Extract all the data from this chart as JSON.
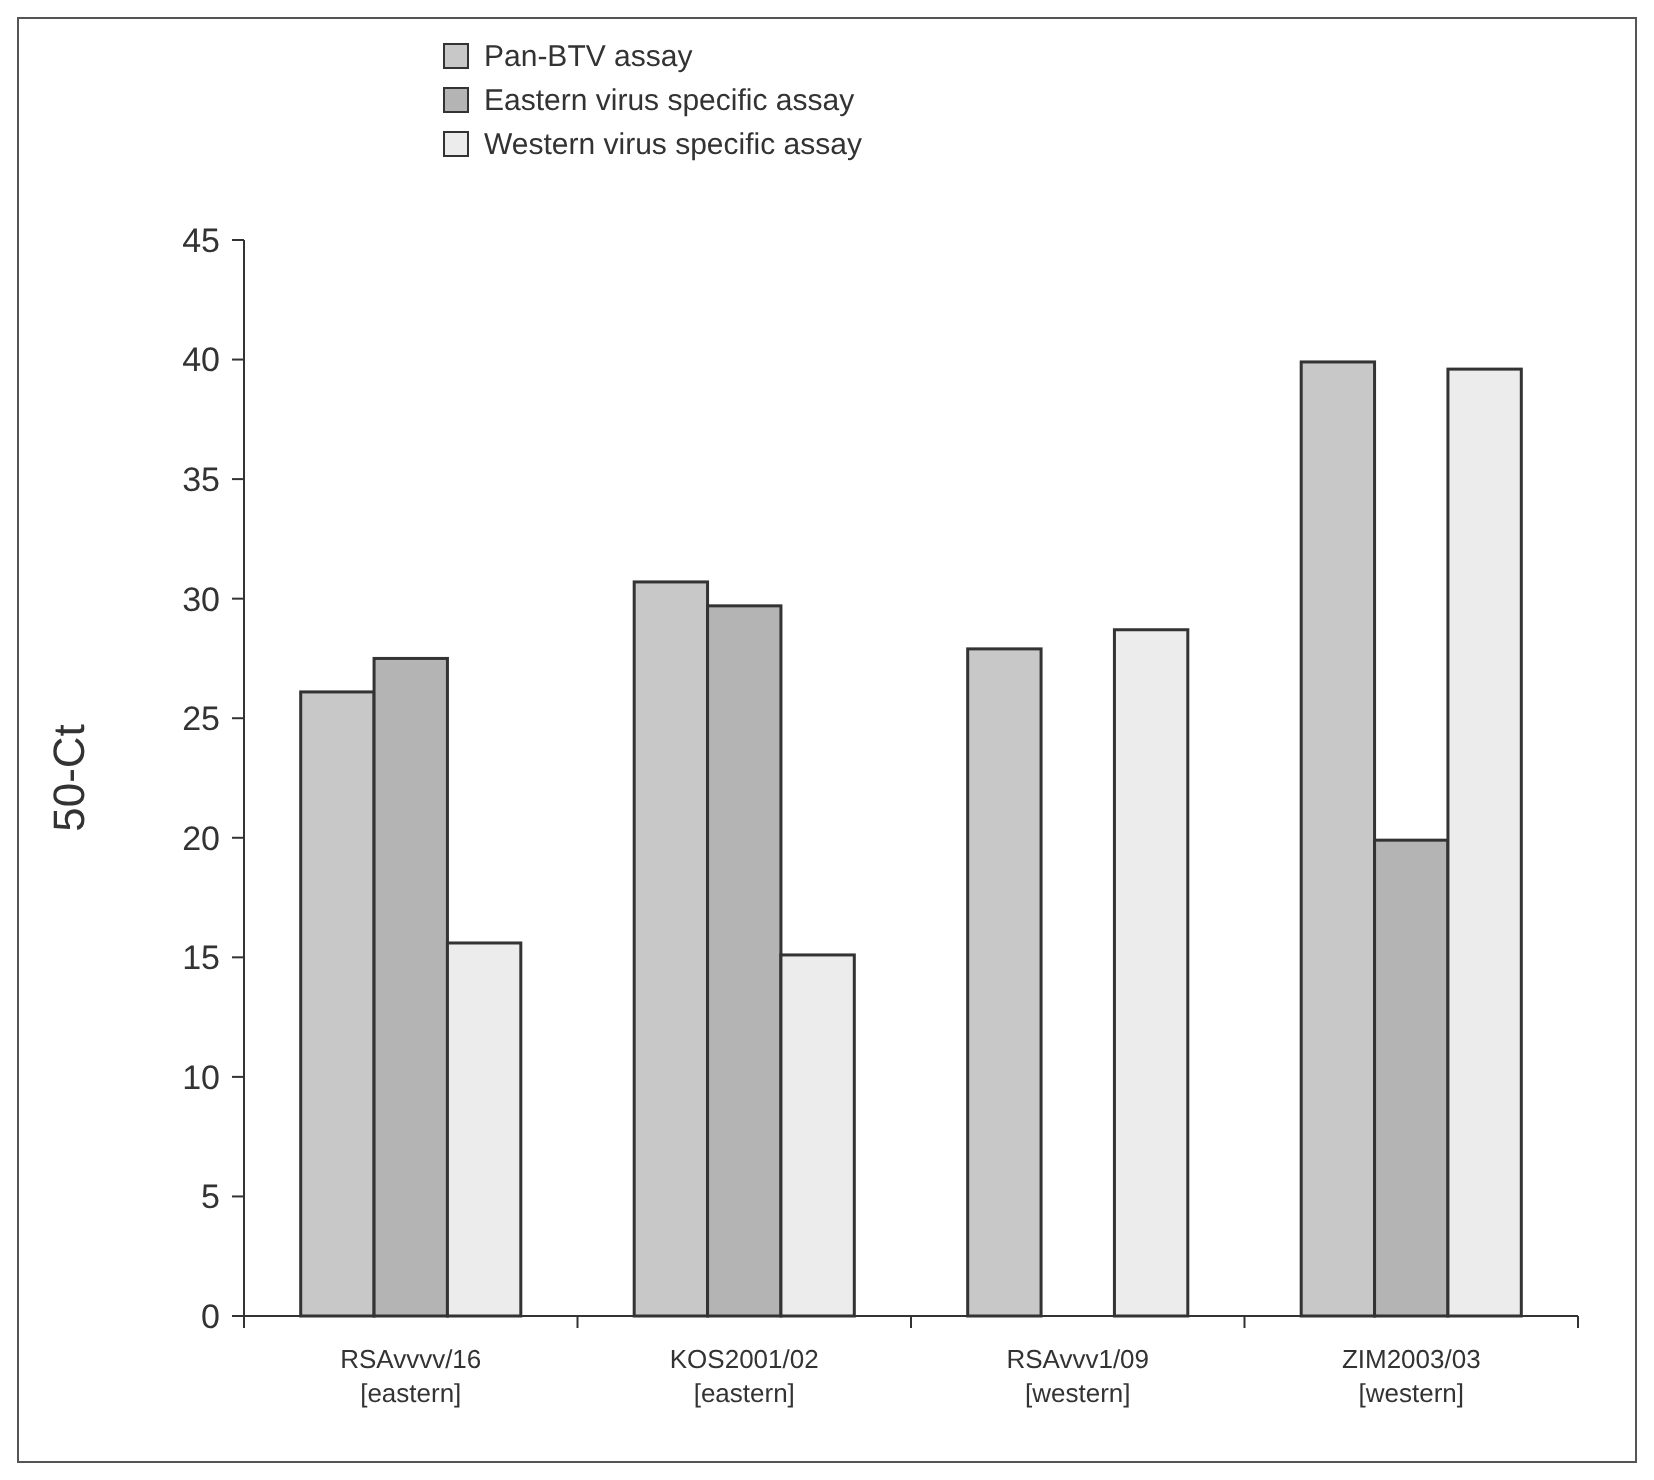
{
  "chart_data": {
    "type": "bar",
    "ylabel": "50-Ct",
    "categories": [
      "RSAvvvv/16\n[eastern]",
      "KOS2001/02\n[eastern]",
      "RSAvvv1/09\n[western]",
      "ZIM2003/03\n[western]"
    ],
    "series": [
      {
        "name": "Pan-BTV assay",
        "color": "#c8c8c8",
        "values": [
          26.1,
          30.7,
          27.9,
          39.9
        ]
      },
      {
        "name": "Eastern virus specific assay",
        "color": "#b4b4b4",
        "values": [
          27.5,
          29.7,
          null,
          19.9
        ]
      },
      {
        "name": "Western virus specific assay",
        "color": "#ececec",
        "values": [
          15.6,
          15.1,
          28.7,
          39.6
        ]
      }
    ],
    "ylim": [
      0,
      45
    ],
    "yticks": [
      0,
      5,
      10,
      15,
      20,
      25,
      30,
      35,
      40,
      45
    ],
    "grid": false,
    "legend": "top"
  }
}
